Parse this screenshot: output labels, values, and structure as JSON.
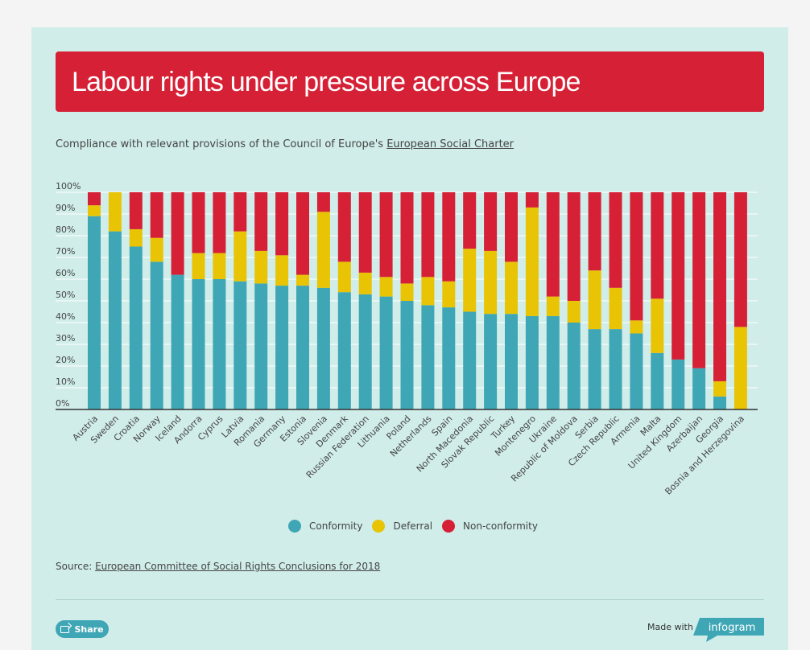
{
  "header": {
    "title": "Labour rights under pressure across Europe"
  },
  "subtitle": {
    "text": "Compliance with relevant provisions of the Council of Europe's ",
    "link": "European Social Charter"
  },
  "source": {
    "label": "Source: ",
    "link": "European Committee of Social Rights Conclusions for 2018"
  },
  "footer": {
    "share_label": "Share",
    "made_with": "Made with",
    "brand": "infogram"
  },
  "colors": {
    "conformity": "#3fa6b6",
    "deferral": "#e8c405",
    "nonconformity": "#d52035"
  },
  "chart_data": {
    "type": "bar",
    "stacked": true,
    "categories": [
      "Austria",
      "Sweden",
      "Croatia",
      "Norway",
      "Iceland",
      "Andorra",
      "Cyprus",
      "Latvia",
      "Romania",
      "Germany",
      "Estonia",
      "Slovenia",
      "Denmark",
      "Russian Federation",
      "Lithuania",
      "Poland",
      "Netherlands",
      "Spain",
      "North Macedonia",
      "Slovak Republic",
      "Turkey",
      "Montenegro",
      "Ukraine",
      "Republic of Moldova",
      "Serbia",
      "Czech Republic",
      "Armenia",
      "Malta",
      "United Kingdom",
      "Azerbaijan",
      "Georgia",
      "Bosnia and Herzegovina"
    ],
    "series": [
      {
        "name": "Conformity",
        "values": [
          89,
          82,
          75,
          68,
          62,
          60,
          60,
          59,
          58,
          57,
          57,
          56,
          54,
          53,
          52,
          50,
          48,
          47,
          45,
          44,
          44,
          43,
          43,
          40,
          37,
          37,
          35,
          26,
          23,
          19,
          6,
          0
        ]
      },
      {
        "name": "Deferral",
        "values": [
          5,
          18,
          8,
          11,
          0,
          12,
          12,
          23,
          15,
          14,
          5,
          35,
          14,
          10,
          9,
          8,
          13,
          12,
          29,
          29,
          24,
          50,
          9,
          10,
          27,
          19,
          6,
          25,
          0,
          0,
          7,
          38
        ]
      },
      {
        "name": "Non-conformity",
        "values": [
          6,
          0,
          17,
          21,
          38,
          28,
          28,
          18,
          27,
          29,
          38,
          9,
          32,
          37,
          39,
          42,
          39,
          41,
          26,
          27,
          32,
          7,
          48,
          50,
          36,
          44,
          59,
          49,
          77,
          81,
          87,
          62
        ]
      }
    ],
    "yticks": [
      "0%",
      "10%",
      "20%",
      "30%",
      "40%",
      "50%",
      "60%",
      "70%",
      "80%",
      "90%",
      "100%"
    ],
    "ylim": [
      0,
      100
    ]
  }
}
